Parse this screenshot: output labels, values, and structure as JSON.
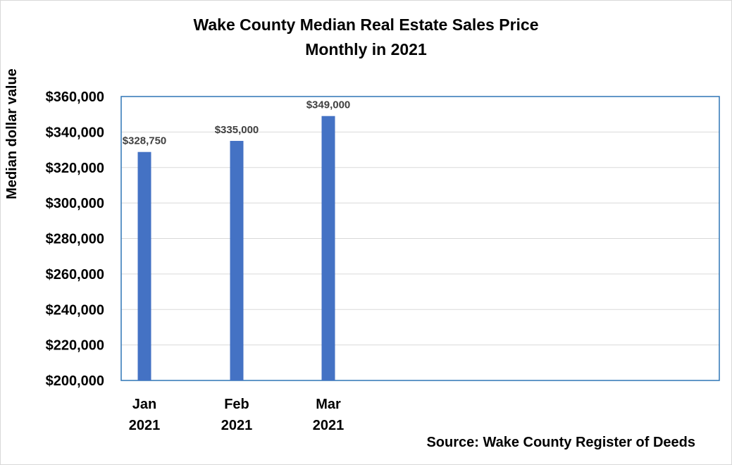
{
  "chart_data": {
    "type": "bar",
    "title": "Wake County Median Real Estate Sales Price",
    "subtitle": "Monthly in 2021",
    "ylabel": "Median dollar value",
    "xlabel": "",
    "categories": [
      {
        "month": "Jan",
        "year": "2021"
      },
      {
        "month": "Feb",
        "year": "2021"
      },
      {
        "month": "Mar",
        "year": "2021"
      }
    ],
    "values": [
      328750,
      335000,
      349000
    ],
    "data_labels": [
      "$328,750",
      "$335,000",
      "$349,000"
    ],
    "ylim": [
      200000,
      360000
    ],
    "yticks": [
      200000,
      220000,
      240000,
      260000,
      280000,
      300000,
      320000,
      340000,
      360000
    ],
    "ytick_labels": [
      "$200,000",
      "$220,000",
      "$240,000",
      "$260,000",
      "$280,000",
      "$300,000",
      "$320,000",
      "$340,000",
      "$360,000"
    ],
    "grid": true,
    "bar_color": "#4472c4",
    "plot_border_color": "#2e75b6",
    "grid_color": "#d9d9d9",
    "source": "Source: Wake County Register of Deeds"
  }
}
